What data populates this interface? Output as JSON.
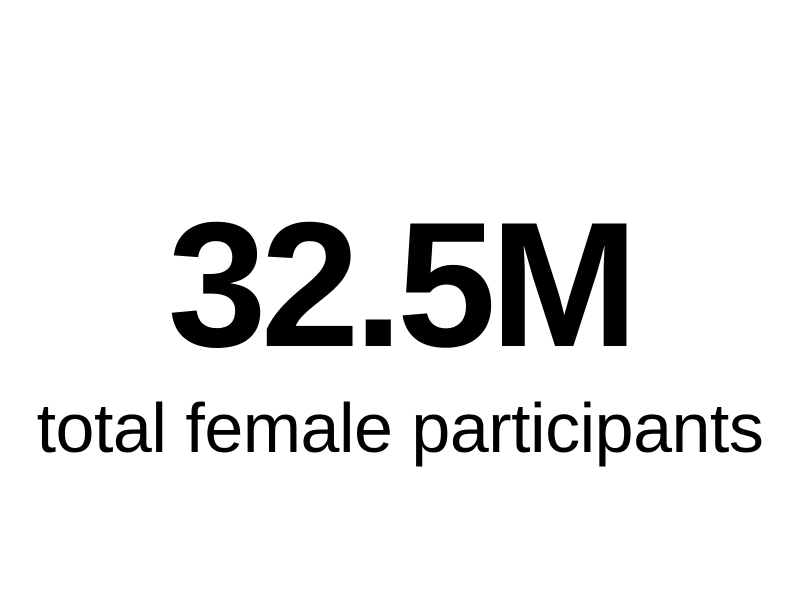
{
  "metric": {
    "value": "32.5M",
    "label": "total female participants"
  },
  "colors": {
    "background": "#ffffff",
    "text": "#000000"
  }
}
